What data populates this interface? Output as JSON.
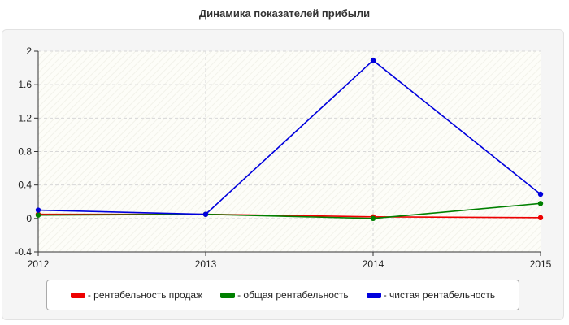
{
  "chart_data": {
    "type": "line",
    "title": "Динамика показателей прибыли",
    "xlabel": "",
    "ylabel": "",
    "categories": [
      "2012",
      "2013",
      "2014",
      "2015"
    ],
    "ylim": [
      -0.4,
      2
    ],
    "yticks": [
      "-0.4",
      "0",
      "0.4",
      "0.8",
      "1.2",
      "1.6",
      "2"
    ],
    "grid": true,
    "legend_position": "bottom",
    "series": [
      {
        "name": "- рентабельность продаж",
        "color": "#ee0000",
        "values": [
          0.05,
          0.05,
          0.02,
          0.01
        ]
      },
      {
        "name": "- общая рентабельность",
        "color": "#008000",
        "values": [
          0.04,
          0.05,
          0.0,
          0.18
        ]
      },
      {
        "name": "- чистая рентабельность",
        "color": "#0000dd",
        "values": [
          0.1,
          0.05,
          1.89,
          0.29
        ]
      }
    ]
  }
}
